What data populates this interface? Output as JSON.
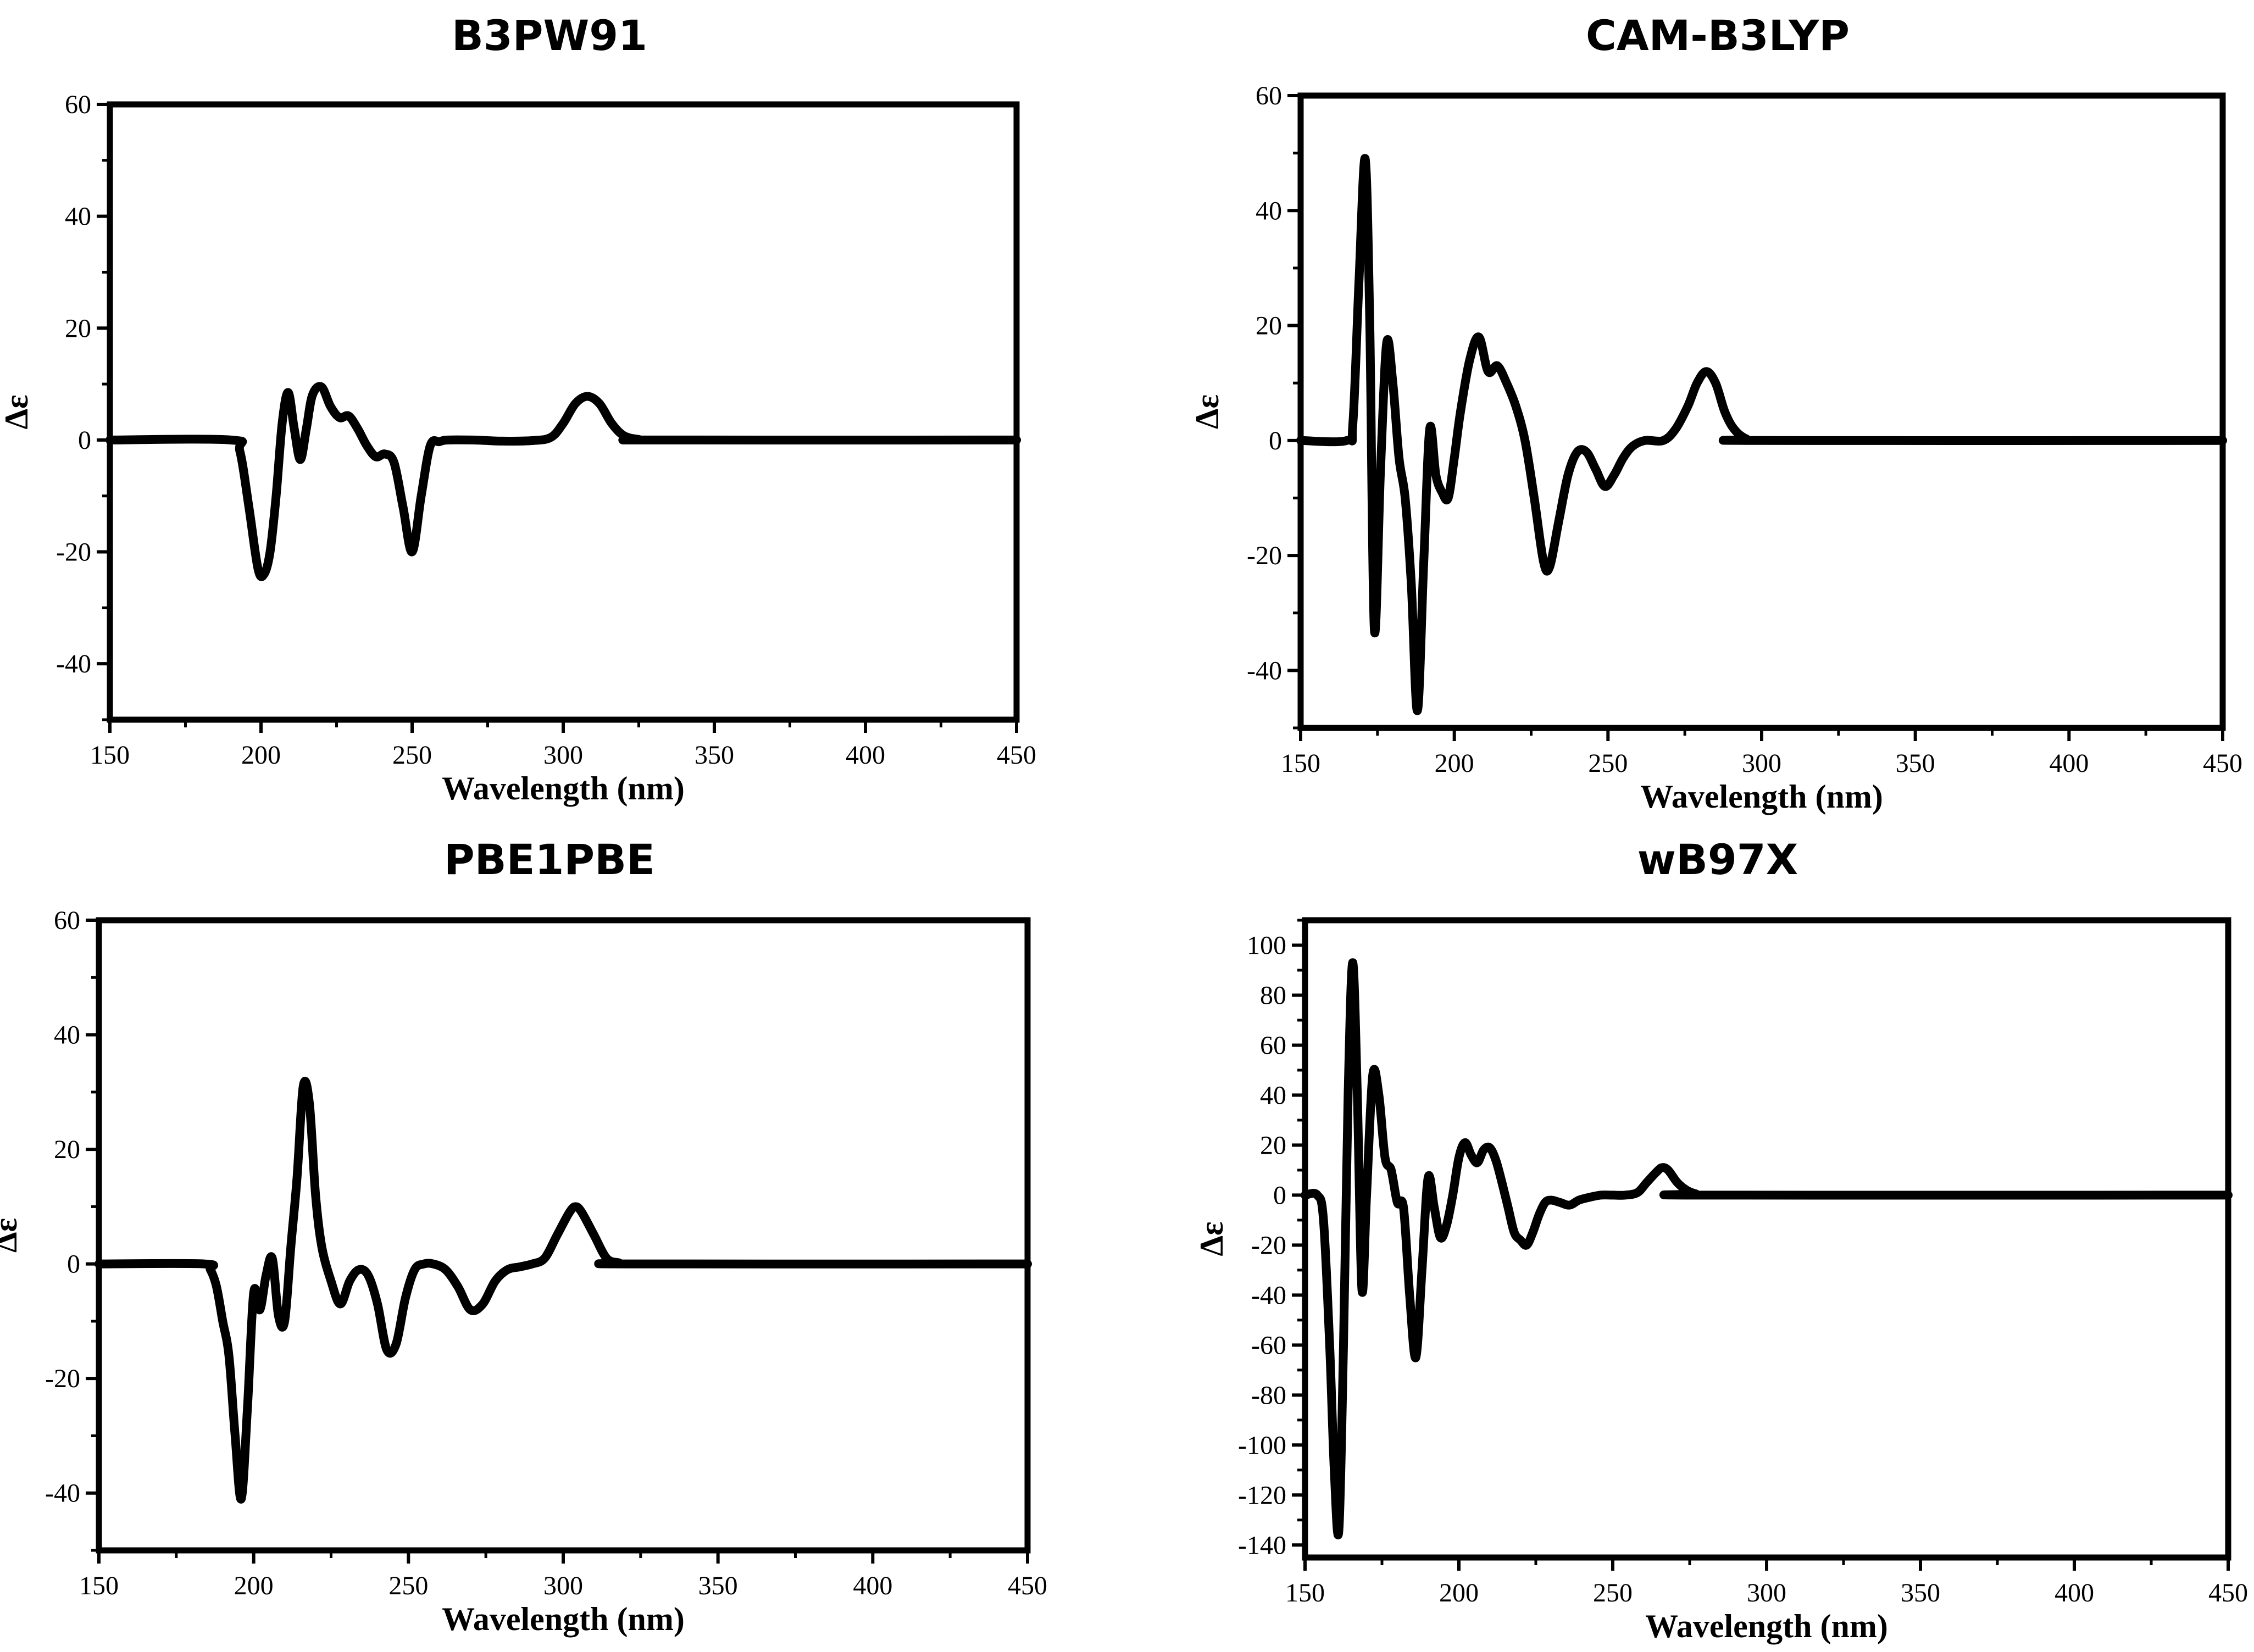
{
  "chart_data": [
    {
      "type": "line",
      "title": "B3PW91",
      "xlabel": "Wavelength (nm)",
      "ylabel": "Δε",
      "xlim": [
        150,
        450
      ],
      "ylim": [
        -50,
        60
      ],
      "xticks": [
        150,
        200,
        250,
        300,
        350,
        400,
        450
      ],
      "yticks": [
        -40,
        -20,
        0,
        20,
        40,
        60
      ],
      "grid": false,
      "series": [
        {
          "color": "#000000",
          "x": [
            150,
            190,
            193,
            196,
            199,
            201,
            203,
            205,
            207,
            209,
            211,
            213,
            215,
            217,
            220,
            223,
            226,
            229,
            232,
            235,
            238,
            241,
            244,
            247,
            250,
            253,
            256,
            259,
            262,
            270,
            280,
            290,
            296,
            300,
            304,
            308,
            312,
            316,
            320,
            325,
            330,
            450
          ],
          "y": [
            0,
            0,
            -2,
            -12,
            -23,
            -24,
            -20,
            -10,
            3,
            8.5,
            2,
            -3.5,
            2,
            8,
            9.5,
            6,
            4,
            4.3,
            2,
            -1,
            -3,
            -2.5,
            -4,
            -12,
            -20,
            -10,
            -1,
            -0.3,
            0,
            0,
            -0.2,
            -0.1,
            0.5,
            3,
            6.5,
            7.8,
            6.5,
            3,
            0.8,
            0.1,
            0,
            0
          ]
        }
      ]
    },
    {
      "type": "line",
      "title": "CAM-B3LYP",
      "xlabel": "Wavelength (nm)",
      "ylabel": "Δε",
      "xlim": [
        150,
        450
      ],
      "ylim": [
        -50,
        60
      ],
      "xticks": [
        150,
        200,
        250,
        300,
        350,
        400,
        450
      ],
      "yticks": [
        -40,
        -20,
        0,
        20,
        40,
        60
      ],
      "grid": false,
      "series": [
        {
          "color": "#000000",
          "x": [
            150,
            165,
            167,
            169,
            171,
            172.5,
            174,
            176,
            178,
            180,
            182,
            184,
            186,
            188,
            190,
            192,
            194,
            196,
            198,
            200,
            202,
            205,
            208,
            211,
            214,
            217,
            220,
            223,
            226,
            229,
            231,
            234,
            237,
            240,
            243,
            246,
            249,
            252,
            255,
            258,
            262,
            268,
            272,
            276,
            279,
            282,
            285,
            288,
            291,
            295,
            300,
            450
          ],
          "y": [
            0,
            0,
            3,
            28,
            49,
            20,
            -33,
            -5,
            17,
            10,
            -3,
            -10,
            -25,
            -47,
            -22,
            2,
            -6,
            -9,
            -10,
            -3,
            5,
            14,
            18,
            12,
            13,
            10,
            6,
            0,
            -10,
            -21,
            -22,
            -14,
            -6,
            -2,
            -2,
            -5,
            -8,
            -6,
            -3,
            -1,
            0,
            0,
            2,
            6,
            10,
            12,
            10,
            5,
            2,
            0.3,
            0,
            0
          ]
        }
      ]
    },
    {
      "type": "line",
      "title": "PBE1PBE",
      "xlabel": "Wavelength (nm)",
      "ylabel": "Δε",
      "xlim": [
        150,
        450
      ],
      "ylim": [
        -50,
        60
      ],
      "xticks": [
        150,
        200,
        250,
        300,
        350,
        400,
        450
      ],
      "yticks": [
        -40,
        -20,
        0,
        20,
        40,
        60
      ],
      "grid": false,
      "series": [
        {
          "color": "#000000",
          "x": [
            150,
            184,
            186,
            188,
            190,
            192,
            194,
            196,
            198,
            200,
            202,
            204,
            206,
            208,
            210,
            212,
            214,
            216,
            218,
            220,
            222,
            225,
            228,
            231,
            234,
            237,
            240,
            243,
            246,
            249,
            252,
            255,
            258,
            262,
            266,
            270,
            274,
            278,
            282,
            286,
            290,
            294,
            298,
            302,
            304,
            306,
            310,
            314,
            318,
            322,
            450
          ],
          "y": [
            0,
            0,
            -1,
            -4,
            -10,
            -16,
            -30,
            -41,
            -25,
            -5,
            -8,
            -2,
            1,
            -9,
            -10,
            3,
            15,
            31,
            28,
            12,
            3,
            -3,
            -7,
            -3,
            -1,
            -2,
            -7,
            -15,
            -14,
            -6,
            -1,
            0,
            0,
            -1,
            -4,
            -8,
            -7,
            -3,
            -1,
            -0.5,
            0,
            1,
            5,
            9,
            10,
            9,
            5,
            1,
            0.2,
            0,
            0
          ]
        }
      ]
    },
    {
      "type": "line",
      "title": "wB97X",
      "xlabel": "Wavelength (nm)",
      "ylabel": "Δε",
      "xlim": [
        150,
        450
      ],
      "ylim": [
        -145,
        110
      ],
      "xticks": [
        150,
        200,
        250,
        300,
        350,
        400,
        450
      ],
      "yticks": [
        -140,
        -120,
        -100,
        -80,
        -60,
        -40,
        -20,
        0,
        20,
        40,
        60,
        80,
        100
      ],
      "grid": false,
      "series": [
        {
          "color": "#000000",
          "x": [
            150,
            154,
            156,
            158,
            159.5,
            161,
            162.5,
            164,
            165.5,
            167,
            168.5,
            170,
            172,
            174,
            176,
            178,
            180,
            182,
            184,
            186,
            188,
            190,
            192,
            194,
            196,
            198,
            200,
            202,
            204,
            206,
            208,
            210,
            212,
            214,
            216,
            218,
            220,
            222,
            224,
            226,
            228,
            230,
            233,
            236,
            239,
            242,
            246,
            250,
            254,
            258,
            261,
            264,
            266,
            268,
            271,
            274,
            277,
            280,
            450
          ],
          "y": [
            0,
            0,
            -10,
            -60,
            -110,
            -134,
            -60,
            40,
            93,
            40,
            -38,
            0,
            48,
            40,
            15,
            10,
            -3,
            -5,
            -40,
            -65,
            -30,
            7,
            -5,
            -17,
            -12,
            0,
            15,
            21,
            16,
            13,
            18,
            19,
            14,
            5,
            -5,
            -15,
            -18,
            -20,
            -15,
            -8,
            -3,
            -2,
            -3,
            -4,
            -2,
            -1,
            0,
            0,
            0,
            1,
            5,
            9,
            11,
            10,
            5,
            2,
            0.5,
            0,
            0
          ]
        }
      ]
    }
  ]
}
